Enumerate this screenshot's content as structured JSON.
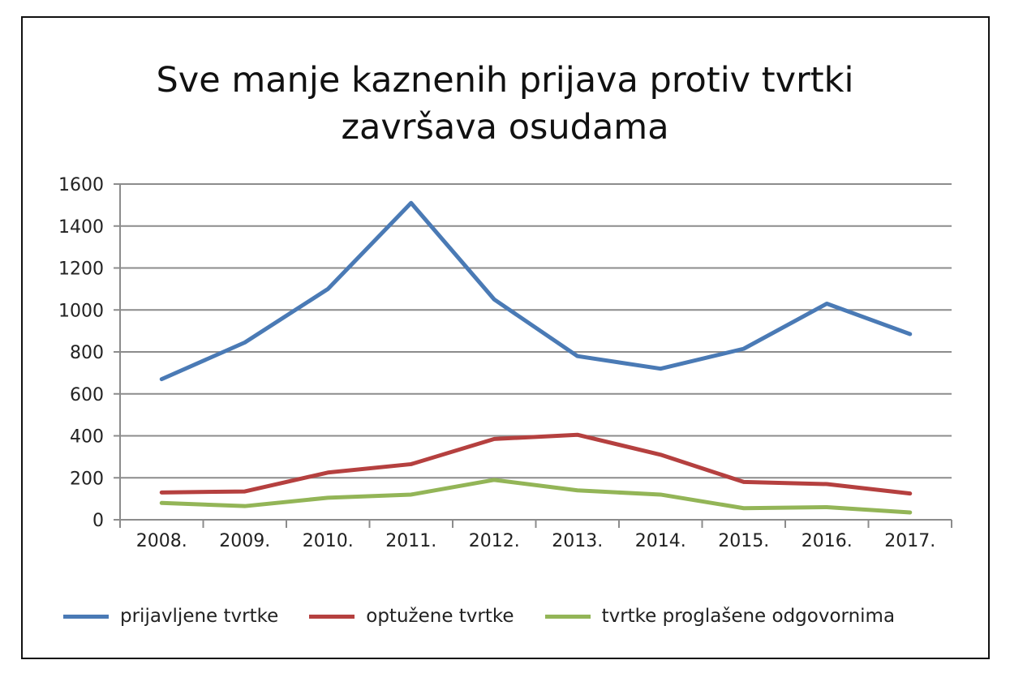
{
  "chart_data": {
    "type": "line",
    "title": "Sve manje kaznenih prijava protiv tvrtki završava osudama",
    "title_lines": [
      "Sve manje kaznenih prijava protiv tvrtki",
      "završava osudama"
    ],
    "xlabel": "",
    "ylabel": "",
    "categories": [
      "2008.",
      "2009.",
      "2010.",
      "2011.",
      "2012.",
      "2013.",
      "2014.",
      "2015.",
      "2016.",
      "2017."
    ],
    "ylim": [
      0,
      1600
    ],
    "yticks": [
      0,
      200,
      400,
      600,
      800,
      1000,
      1200,
      1400,
      1600
    ],
    "grid": true,
    "legend_position": "bottom",
    "series": [
      {
        "name": "prijavljene tvrtke",
        "color": "#4a7ab5",
        "values": [
          670,
          845,
          1100,
          1510,
          1050,
          780,
          720,
          815,
          1030,
          885
        ]
      },
      {
        "name": "optužene tvrtke",
        "color": "#b5403f",
        "values": [
          130,
          135,
          225,
          265,
          385,
          405,
          310,
          180,
          170,
          125
        ]
      },
      {
        "name": "tvrtke proglašene odgovornima",
        "color": "#93b557",
        "values": [
          80,
          65,
          105,
          120,
          190,
          140,
          120,
          55,
          60,
          35
        ]
      }
    ]
  }
}
